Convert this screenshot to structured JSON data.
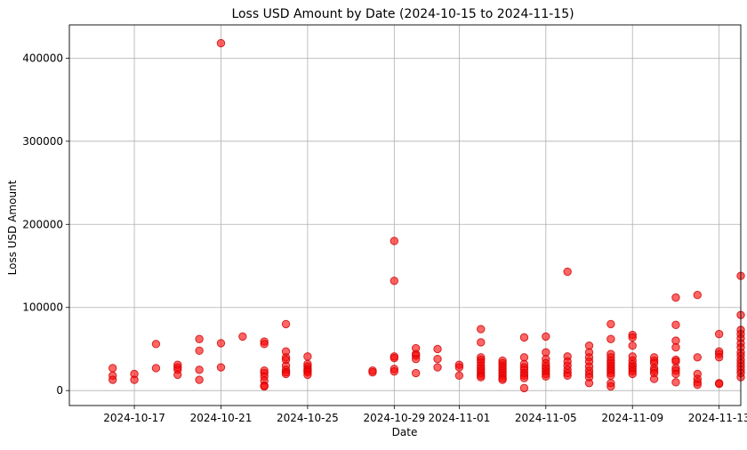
{
  "chart_data": {
    "type": "scatter",
    "title": "Loss USD Amount by Date (2024-10-15 to 2024-11-15)",
    "xlabel": "Date",
    "ylabel": "Loss USD Amount",
    "xlim": [
      "2024-10-14",
      "2024-11-14"
    ],
    "ylim": [
      -18000,
      440000
    ],
    "x_ticks": [
      "2024-10-17",
      "2024-10-21",
      "2024-10-25",
      "2024-10-29",
      "2024-11-01",
      "2024-11-05",
      "2024-11-09",
      "2024-11-13"
    ],
    "y_ticks": [
      0,
      100000,
      200000,
      300000,
      400000
    ],
    "grid": true,
    "colors": {
      "marker": "#ff0000"
    },
    "points": [
      {
        "x": "2024-10-16",
        "y": 27000
      },
      {
        "x": "2024-10-16",
        "y": 18000
      },
      {
        "x": "2024-10-16",
        "y": 13000
      },
      {
        "x": "2024-10-17",
        "y": 20000
      },
      {
        "x": "2024-10-17",
        "y": 13000
      },
      {
        "x": "2024-10-18",
        "y": 56000
      },
      {
        "x": "2024-10-18",
        "y": 27000
      },
      {
        "x": "2024-10-19",
        "y": 31000
      },
      {
        "x": "2024-10-19",
        "y": 28000
      },
      {
        "x": "2024-10-19",
        "y": 25000
      },
      {
        "x": "2024-10-19",
        "y": 19000
      },
      {
        "x": "2024-10-20",
        "y": 62000
      },
      {
        "x": "2024-10-20",
        "y": 48000
      },
      {
        "x": "2024-10-20",
        "y": 25000
      },
      {
        "x": "2024-10-20",
        "y": 13000
      },
      {
        "x": "2024-10-21",
        "y": 418000
      },
      {
        "x": "2024-10-21",
        "y": 57000
      },
      {
        "x": "2024-10-21",
        "y": 28000
      },
      {
        "x": "2024-10-22",
        "y": 65000
      },
      {
        "x": "2024-10-23",
        "y": 59000
      },
      {
        "x": "2024-10-23",
        "y": 56000
      },
      {
        "x": "2024-10-23",
        "y": 24000
      },
      {
        "x": "2024-10-23",
        "y": 21000
      },
      {
        "x": "2024-10-23",
        "y": 17000
      },
      {
        "x": "2024-10-23",
        "y": 12000
      },
      {
        "x": "2024-10-23",
        "y": 6000
      },
      {
        "x": "2024-10-23",
        "y": 5000
      },
      {
        "x": "2024-10-24",
        "y": 80000
      },
      {
        "x": "2024-10-24",
        "y": 47000
      },
      {
        "x": "2024-10-24",
        "y": 40000
      },
      {
        "x": "2024-10-24",
        "y": 37000
      },
      {
        "x": "2024-10-24",
        "y": 30000
      },
      {
        "x": "2024-10-24",
        "y": 25000
      },
      {
        "x": "2024-10-24",
        "y": 22000
      },
      {
        "x": "2024-10-24",
        "y": 20000
      },
      {
        "x": "2024-10-25",
        "y": 41000
      },
      {
        "x": "2024-10-25",
        "y": 32000
      },
      {
        "x": "2024-10-25",
        "y": 29000
      },
      {
        "x": "2024-10-25",
        "y": 26000
      },
      {
        "x": "2024-10-25",
        "y": 24000
      },
      {
        "x": "2024-10-25",
        "y": 22000
      },
      {
        "x": "2024-10-25",
        "y": 19000
      },
      {
        "x": "2024-10-28",
        "y": 24000
      },
      {
        "x": "2024-10-28",
        "y": 22000
      },
      {
        "x": "2024-10-29",
        "y": 180000
      },
      {
        "x": "2024-10-29",
        "y": 132000
      },
      {
        "x": "2024-10-29",
        "y": 41000
      },
      {
        "x": "2024-10-29",
        "y": 39000
      },
      {
        "x": "2024-10-29",
        "y": 26000
      },
      {
        "x": "2024-10-29",
        "y": 23000
      },
      {
        "x": "2024-10-30",
        "y": 51000
      },
      {
        "x": "2024-10-30",
        "y": 44000
      },
      {
        "x": "2024-10-30",
        "y": 42000
      },
      {
        "x": "2024-10-30",
        "y": 38000
      },
      {
        "x": "2024-10-30",
        "y": 21000
      },
      {
        "x": "2024-10-31",
        "y": 50000
      },
      {
        "x": "2024-10-31",
        "y": 38000
      },
      {
        "x": "2024-10-31",
        "y": 28000
      },
      {
        "x": "2024-11-01",
        "y": 31000
      },
      {
        "x": "2024-11-01",
        "y": 28000
      },
      {
        "x": "2024-11-01",
        "y": 18000
      },
      {
        "x": "2024-11-02",
        "y": 74000
      },
      {
        "x": "2024-11-02",
        "y": 58000
      },
      {
        "x": "2024-11-02",
        "y": 40000
      },
      {
        "x": "2024-11-02",
        "y": 37000
      },
      {
        "x": "2024-11-02",
        "y": 34000
      },
      {
        "x": "2024-11-02",
        "y": 30000
      },
      {
        "x": "2024-11-02",
        "y": 27000
      },
      {
        "x": "2024-11-02",
        "y": 24000
      },
      {
        "x": "2024-11-02",
        "y": 21000
      },
      {
        "x": "2024-11-02",
        "y": 18000
      },
      {
        "x": "2024-11-02",
        "y": 16000
      },
      {
        "x": "2024-11-03",
        "y": 36000
      },
      {
        "x": "2024-11-03",
        "y": 33000
      },
      {
        "x": "2024-11-03",
        "y": 30000
      },
      {
        "x": "2024-11-03",
        "y": 27000
      },
      {
        "x": "2024-11-03",
        "y": 24000
      },
      {
        "x": "2024-11-03",
        "y": 21000
      },
      {
        "x": "2024-11-03",
        "y": 18000
      },
      {
        "x": "2024-11-03",
        "y": 15000
      },
      {
        "x": "2024-11-03",
        "y": 13000
      },
      {
        "x": "2024-11-04",
        "y": 64000
      },
      {
        "x": "2024-11-04",
        "y": 40000
      },
      {
        "x": "2024-11-04",
        "y": 32000
      },
      {
        "x": "2024-11-04",
        "y": 28000
      },
      {
        "x": "2024-11-04",
        "y": 25000
      },
      {
        "x": "2024-11-04",
        "y": 21000
      },
      {
        "x": "2024-11-04",
        "y": 18000
      },
      {
        "x": "2024-11-04",
        "y": 15000
      },
      {
        "x": "2024-11-04",
        "y": 3000
      },
      {
        "x": "2024-11-05",
        "y": 65000
      },
      {
        "x": "2024-11-05",
        "y": 46000
      },
      {
        "x": "2024-11-05",
        "y": 38000
      },
      {
        "x": "2024-11-05",
        "y": 33000
      },
      {
        "x": "2024-11-05",
        "y": 29000
      },
      {
        "x": "2024-11-05",
        "y": 26000
      },
      {
        "x": "2024-11-05",
        "y": 23000
      },
      {
        "x": "2024-11-05",
        "y": 20000
      },
      {
        "x": "2024-11-05",
        "y": 17000
      },
      {
        "x": "2024-11-06",
        "y": 143000
      },
      {
        "x": "2024-11-06",
        "y": 41000
      },
      {
        "x": "2024-11-06",
        "y": 35000
      },
      {
        "x": "2024-11-06",
        "y": 30000
      },
      {
        "x": "2024-11-06",
        "y": 25000
      },
      {
        "x": "2024-11-06",
        "y": 21000
      },
      {
        "x": "2024-11-06",
        "y": 18000
      },
      {
        "x": "2024-11-07",
        "y": 54000
      },
      {
        "x": "2024-11-07",
        "y": 46000
      },
      {
        "x": "2024-11-07",
        "y": 40000
      },
      {
        "x": "2024-11-07",
        "y": 35000
      },
      {
        "x": "2024-11-07",
        "y": 29000
      },
      {
        "x": "2024-11-07",
        "y": 24000
      },
      {
        "x": "2024-11-07",
        "y": 20000
      },
      {
        "x": "2024-11-07",
        "y": 16000
      },
      {
        "x": "2024-11-07",
        "y": 9000
      },
      {
        "x": "2024-11-08",
        "y": 80000
      },
      {
        "x": "2024-11-08",
        "y": 62000
      },
      {
        "x": "2024-11-08",
        "y": 44000
      },
      {
        "x": "2024-11-08",
        "y": 40000
      },
      {
        "x": "2024-11-08",
        "y": 36000
      },
      {
        "x": "2024-11-08",
        "y": 33000
      },
      {
        "x": "2024-11-08",
        "y": 30000
      },
      {
        "x": "2024-11-08",
        "y": 27000
      },
      {
        "x": "2024-11-08",
        "y": 24000
      },
      {
        "x": "2024-11-08",
        "y": 21000
      },
      {
        "x": "2024-11-08",
        "y": 18000
      },
      {
        "x": "2024-11-08",
        "y": 9000
      },
      {
        "x": "2024-11-08",
        "y": 5000
      },
      {
        "x": "2024-11-09",
        "y": 67000
      },
      {
        "x": "2024-11-09",
        "y": 64000
      },
      {
        "x": "2024-11-09",
        "y": 54000
      },
      {
        "x": "2024-11-09",
        "y": 41000
      },
      {
        "x": "2024-11-09",
        "y": 36000
      },
      {
        "x": "2024-11-09",
        "y": 32000
      },
      {
        "x": "2024-11-09",
        "y": 29000
      },
      {
        "x": "2024-11-09",
        "y": 26000
      },
      {
        "x": "2024-11-09",
        "y": 23000
      },
      {
        "x": "2024-11-09",
        "y": 20000
      },
      {
        "x": "2024-11-10",
        "y": 40000
      },
      {
        "x": "2024-11-10",
        "y": 36000
      },
      {
        "x": "2024-11-10",
        "y": 33000
      },
      {
        "x": "2024-11-10",
        "y": 27000
      },
      {
        "x": "2024-11-10",
        "y": 24000
      },
      {
        "x": "2024-11-10",
        "y": 21000
      },
      {
        "x": "2024-11-10",
        "y": 14000
      },
      {
        "x": "2024-11-11",
        "y": 112000
      },
      {
        "x": "2024-11-11",
        "y": 79000
      },
      {
        "x": "2024-11-11",
        "y": 60000
      },
      {
        "x": "2024-11-11",
        "y": 52000
      },
      {
        "x": "2024-11-11",
        "y": 37000
      },
      {
        "x": "2024-11-11",
        "y": 35000
      },
      {
        "x": "2024-11-11",
        "y": 27000
      },
      {
        "x": "2024-11-11",
        "y": 24000
      },
      {
        "x": "2024-11-11",
        "y": 20000
      },
      {
        "x": "2024-11-11",
        "y": 10000
      },
      {
        "x": "2024-11-12",
        "y": 115000
      },
      {
        "x": "2024-11-12",
        "y": 40000
      },
      {
        "x": "2024-11-12",
        "y": 20000
      },
      {
        "x": "2024-11-12",
        "y": 14000
      },
      {
        "x": "2024-11-12",
        "y": 10000
      },
      {
        "x": "2024-11-12",
        "y": 7000
      },
      {
        "x": "2024-11-13",
        "y": 68000
      },
      {
        "x": "2024-11-13",
        "y": 47000
      },
      {
        "x": "2024-11-13",
        "y": 44000
      },
      {
        "x": "2024-11-13",
        "y": 40000
      },
      {
        "x": "2024-11-13",
        "y": 9000
      },
      {
        "x": "2024-11-13",
        "y": 8000
      },
      {
        "x": "2024-11-14",
        "y": 138000
      },
      {
        "x": "2024-11-14",
        "y": 91000
      },
      {
        "x": "2024-11-14",
        "y": 73000
      },
      {
        "x": "2024-11-14",
        "y": 68000
      },
      {
        "x": "2024-11-14",
        "y": 63000
      },
      {
        "x": "2024-11-14",
        "y": 57000
      },
      {
        "x": "2024-11-14",
        "y": 52000
      },
      {
        "x": "2024-11-14",
        "y": 46000
      },
      {
        "x": "2024-11-14",
        "y": 42000
      },
      {
        "x": "2024-11-14",
        "y": 37000
      },
      {
        "x": "2024-11-14",
        "y": 33000
      },
      {
        "x": "2024-11-14",
        "y": 29000
      },
      {
        "x": "2024-11-14",
        "y": 25000
      },
      {
        "x": "2024-11-14",
        "y": 21000
      },
      {
        "x": "2024-11-14",
        "y": 16000
      }
    ]
  }
}
